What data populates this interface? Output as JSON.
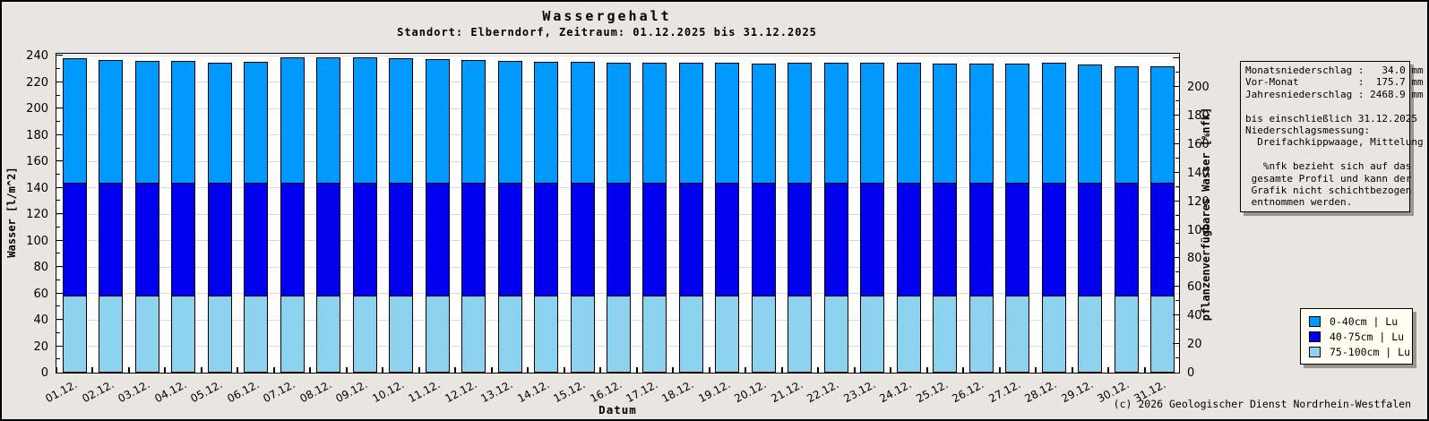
{
  "header": {
    "title": "Wassergehalt",
    "subtitle": "Standort: Elberndorf, Zeitraum: 01.12.2025 bis 31.12.2025"
  },
  "footer": {
    "copyright": "(c) 2026 Geologischer Dienst Nordrhein-Westfalen"
  },
  "colors": {
    "page_bg": "#e9e6e1",
    "plot_bg": "#ffffff",
    "grid": "#d8d8d8",
    "layer_0_40": "#0099ff",
    "layer_40_75": "#0000ee",
    "layer_75_100": "#8cd2ee",
    "legend_bg": "#fffff2",
    "box_shadow": "#99968f"
  },
  "info_box": {
    "lines": [
      "Monatsniederschlag :   34.0 mm",
      "Vor-Monat          :  175.7 mm",
      "Jahresniederschlag : 2468.9 mm",
      "",
      "bis einschließlich 31.12.2025",
      "Niederschlagsmessung:",
      "  Dreifachkippwaage, Mittelung",
      "",
      "   %nfk bezieht sich auf das",
      " gesamte Profil und kann der",
      " Grafik nicht schichtbezogen",
      " entnommen werden."
    ]
  },
  "legend": {
    "items": [
      {
        "label": "0-40cm | Lu",
        "color": "#0099ff"
      },
      {
        "label": "40-75cm | Lu",
        "color": "#0000ee"
      },
      {
        "label": "75-100cm | Lu",
        "color": "#8cd2ee"
      }
    ]
  },
  "chart_data": {
    "type": "bar",
    "stacked": true,
    "title": "Wassergehalt",
    "subtitle": "Standort: Elberndorf, Zeitraum: 01.12.2025 bis 31.12.2025",
    "xlabel": "Datum",
    "ylabel_left": "Wasser [l/m^2]",
    "ylabel_right": "pflanzenverfügbares Wasser [%nfk]",
    "ylim_left": [
      0,
      243
    ],
    "ylim_right": [
      0,
      224.5
    ],
    "ytick_major_step": 20,
    "ytick_minor_step": 10,
    "left_tick_max_label": 240,
    "right_tick_max_label": 200,
    "grid": true,
    "legend_position": "bottom-right",
    "categories": [
      "01.12.",
      "02.12.",
      "03.12.",
      "04.12.",
      "05.12.",
      "06.12.",
      "07.12.",
      "08.12.",
      "09.12.",
      "10.12.",
      "11.12.",
      "12.12.",
      "13.12.",
      "14.12.",
      "15.12.",
      "16.12.",
      "17.12.",
      "18.12.",
      "19.12.",
      "20.12.",
      "21.12.",
      "22.12.",
      "23.12.",
      "24.12.",
      "25.12.",
      "26.12.",
      "27.12.",
      "28.12.",
      "29.12.",
      "30.12.",
      "31.12."
    ],
    "series": [
      {
        "name": "0-40cm | Lu",
        "color": "#0099ff",
        "values": [
          94.5,
          93.5,
          92.5,
          92.5,
          91.5,
          92,
          95.5,
          95.5,
          95,
          94.5,
          94,
          93.5,
          92.5,
          92,
          92,
          91.5,
          91.5,
          91,
          91,
          90.5,
          91,
          91.5,
          91.5,
          91,
          90.5,
          90.5,
          90.5,
          91,
          89.5,
          88.5,
          88.5
        ]
      },
      {
        "name": "40-75cm | Lu",
        "color": "#0000ee",
        "values": [
          85,
          85,
          85,
          85,
          85,
          85,
          85,
          85,
          85,
          85,
          85,
          85,
          85,
          85,
          85,
          85,
          85,
          85,
          85,
          85,
          85,
          85,
          85,
          85,
          85,
          85,
          85,
          85,
          85,
          85,
          85
        ]
      },
      {
        "name": "75-100cm | Lu",
        "color": "#8cd2ee",
        "values": [
          58,
          58,
          58,
          58,
          58,
          58,
          58,
          58,
          58,
          58,
          58,
          58,
          58,
          58,
          58,
          58,
          58,
          58,
          58,
          58,
          58,
          58,
          58,
          58,
          58,
          58,
          58,
          58,
          58,
          58,
          58
        ]
      }
    ]
  }
}
